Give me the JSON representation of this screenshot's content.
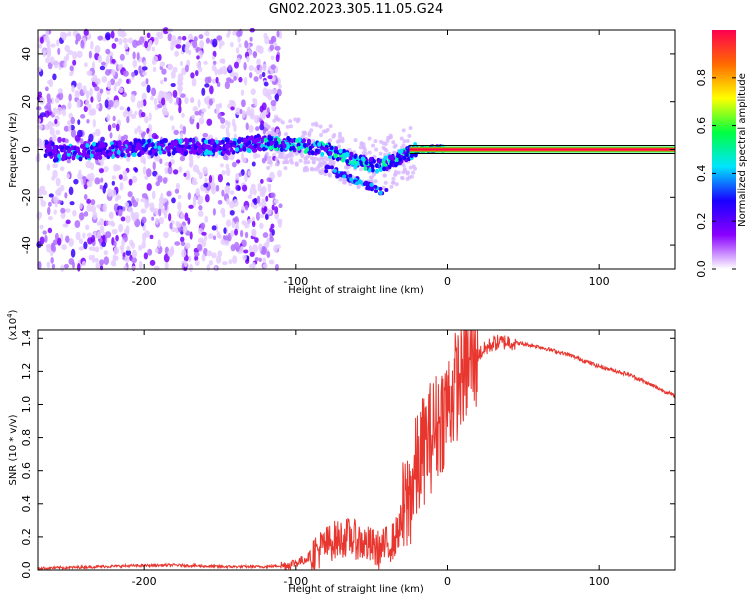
{
  "title": "GN02.2023.305.11.05.G24",
  "chart_data": [
    {
      "type": "heatmap",
      "name": "spectrogram",
      "xlabel": "Height of straight line (km)",
      "ylabel": "Frequency (Hz)",
      "xlim": [
        -270,
        150
      ],
      "ylim": [
        -50,
        50
      ],
      "xticks": [
        -200,
        -100,
        0,
        100
      ],
      "yticks": [
        -40,
        -20,
        0,
        20,
        40
      ],
      "colorbar": {
        "label": "Normalized spectral amplitude",
        "range": [
          0,
          1
        ],
        "ticks": [
          0.0,
          0.2,
          0.4,
          0.6,
          0.8
        ],
        "colors": [
          "#ffffff",
          "#8a00ff",
          "#1a00ff",
          "#00e5ff",
          "#00ff40",
          "#ffff00",
          "#ff6a00",
          "#ff0050"
        ]
      },
      "features": {
        "noise_region_x": [
          -270,
          -110
        ],
        "dense_band_x": [
          -120,
          -20
        ],
        "converge_x": -20,
        "steady_line": {
          "x": [
            0,
            150
          ],
          "frequency": 0,
          "amplitude": 1.0
        },
        "band_center_track": [
          [
            -260,
            -2
          ],
          [
            -200,
            1
          ],
          [
            -150,
            1
          ],
          [
            -120,
            3
          ],
          [
            -100,
            2
          ],
          [
            -80,
            0
          ],
          [
            -60,
            -5
          ],
          [
            -45,
            -7
          ],
          [
            -30,
            -3
          ],
          [
            -20,
            0
          ],
          [
            0,
            0.5
          ]
        ]
      }
    },
    {
      "type": "line",
      "name": "snr",
      "xlabel": "Height of straight line (km)",
      "ylabel": "SNR (10 * v/v)",
      "y_multiplier": "(x10^4)",
      "xlim": [
        -270,
        150
      ],
      "ylim": [
        0.0,
        1.45
      ],
      "xticks": [
        -200,
        -100,
        0,
        100
      ],
      "yticks": [
        0.0,
        0.2,
        0.4,
        0.6,
        0.8,
        1.0,
        1.2,
        1.4
      ],
      "color": "#e8352e",
      "series": [
        {
          "x": [
            -270,
            -250,
            -230,
            -210,
            -180,
            -150,
            -120,
            -105,
            -95,
            -85,
            -75,
            -65,
            -55,
            -45,
            -35,
            -28,
            -22,
            -15,
            -8,
            0,
            10,
            20,
            30,
            40,
            60,
            80,
            100,
            120,
            150
          ],
          "y": [
            0.01,
            0.015,
            0.02,
            0.025,
            0.03,
            0.02,
            0.02,
            0.03,
            0.06,
            0.12,
            0.18,
            0.2,
            0.16,
            0.12,
            0.18,
            0.35,
            0.55,
            0.75,
            0.85,
            1.0,
            1.2,
            1.3,
            1.37,
            1.38,
            1.35,
            1.3,
            1.23,
            1.18,
            1.05
          ]
        }
      ]
    }
  ]
}
